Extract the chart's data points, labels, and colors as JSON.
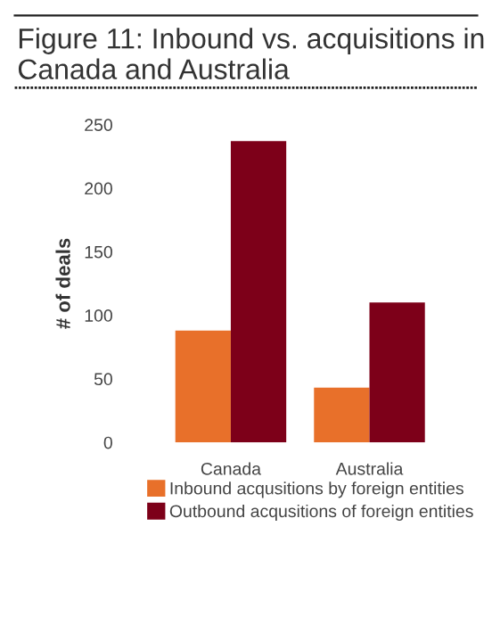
{
  "chart_data": {
    "type": "bar",
    "title": "Figure 11: Inbound vs. acquisitions in Canada and Australia",
    "ylabel": "# of deals",
    "categories": [
      "Canada",
      "Australia"
    ],
    "series": [
      {
        "name": "Inbound acqusitions by foreign entities",
        "color": "#e8702a",
        "values": [
          88,
          43
        ]
      },
      {
        "name": "Outbound acqusitions of foreign entities",
        "color": "#7d0019",
        "values": [
          237,
          110
        ]
      }
    ],
    "ylim": [
      0,
      250
    ],
    "yticks": [
      0,
      50,
      100,
      150,
      200,
      250
    ],
    "grid": false,
    "legend": "bottom"
  }
}
